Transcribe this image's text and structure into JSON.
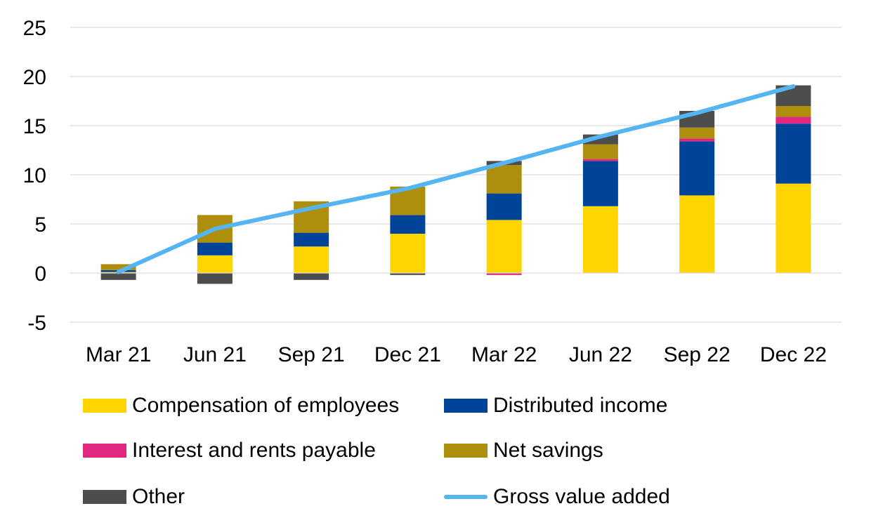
{
  "chart_data": {
    "type": "bar",
    "stacked": true,
    "title": "",
    "xlabel": "",
    "ylabel": "",
    "ylim": [
      -5,
      25
    ],
    "yticks": [
      -5,
      0,
      5,
      10,
      15,
      20,
      25
    ],
    "grid": true,
    "legend_position": "bottom",
    "categories": [
      "Mar 21",
      "Jun 21",
      "Sep 21",
      "Dec 21",
      "Mar 22",
      "Jun 22",
      "Sep 22",
      "Dec 22"
    ],
    "series": [
      {
        "name": "Compensation of employees",
        "kind": "bar",
        "color": "#FFD500",
        "values": [
          0.1,
          1.8,
          2.7,
          4.0,
          5.4,
          6.8,
          7.9,
          9.1
        ]
      },
      {
        "name": "Distributed income",
        "kind": "bar",
        "color": "#00449A",
        "values": [
          0.2,
          1.3,
          1.4,
          1.9,
          2.7,
          4.6,
          5.5,
          6.1
        ]
      },
      {
        "name": "Interest and rents payable",
        "kind": "bar",
        "color": "#E0287E",
        "values": [
          0.0,
          0.0,
          0.0,
          0.0,
          -0.2,
          0.2,
          0.3,
          0.7
        ]
      },
      {
        "name": "Net savings",
        "kind": "bar",
        "color": "#AD8F0D",
        "values": [
          0.6,
          2.8,
          3.2,
          2.9,
          2.9,
          1.5,
          1.1,
          1.1
        ]
      },
      {
        "name": "Other",
        "kind": "bar",
        "color": "#4D4D4D",
        "values": [
          -0.7,
          -1.1,
          -0.7,
          -0.2,
          0.4,
          1.0,
          1.7,
          2.1
        ]
      },
      {
        "name": "Gross value added",
        "kind": "line",
        "color": "#55B4F2",
        "values": [
          0.1,
          4.5,
          6.6,
          8.6,
          11.2,
          13.9,
          16.3,
          19.0
        ]
      }
    ]
  }
}
